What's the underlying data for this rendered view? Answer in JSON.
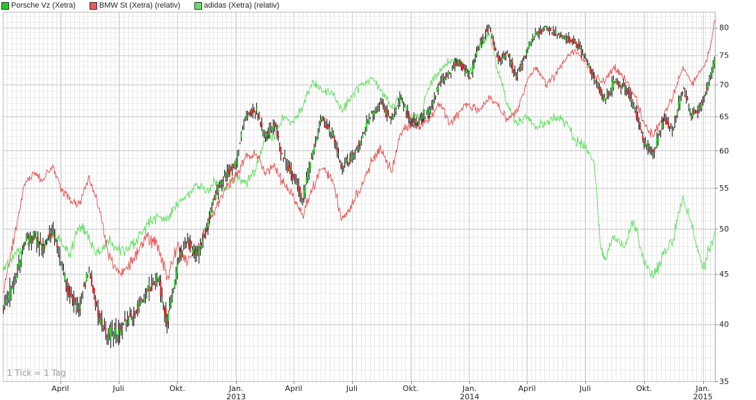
{
  "legend": [
    {
      "label": "Porsche Vz (Xetra)",
      "color": "#22cc22"
    },
    {
      "label": "BMW St (Xetra) (relativ)",
      "color": "#e55b5b"
    },
    {
      "label": "adidas (Xetra) (relativ)",
      "color": "#66e066"
    }
  ],
  "note": "1 Tick = 1 Tag",
  "chart_data": {
    "type": "line",
    "y_scale": "log",
    "ylim": [
      35,
      83
    ],
    "xlim": [
      "2012-01-02",
      "2015-01-20"
    ],
    "grid": true,
    "y_ticks": [
      35,
      40,
      45,
      50,
      55,
      60,
      65,
      70,
      75,
      80
    ],
    "x_ticks": [
      {
        "date": "2012-04-01",
        "label": "April",
        "year": ""
      },
      {
        "date": "2012-07-01",
        "label": "Juli",
        "year": ""
      },
      {
        "date": "2012-10-01",
        "label": "Okt.",
        "year": ""
      },
      {
        "date": "2013-01-01",
        "label": "Jan.",
        "year": "2013"
      },
      {
        "date": "2013-04-01",
        "label": "April",
        "year": ""
      },
      {
        "date": "2013-07-01",
        "label": "Juli",
        "year": ""
      },
      {
        "date": "2013-10-01",
        "label": "Okt.",
        "year": ""
      },
      {
        "date": "2014-01-01",
        "label": "Jan.",
        "year": "2014"
      },
      {
        "date": "2014-04-01",
        "label": "April",
        "year": ""
      },
      {
        "date": "2014-07-01",
        "label": "Juli",
        "year": ""
      },
      {
        "date": "2014-10-01",
        "label": "Okt.",
        "year": ""
      },
      {
        "date": "2015-01-01",
        "label": "Jan.",
        "year": "2015"
      }
    ],
    "series": [
      {
        "name": "Porsche Vz (Xetra)",
        "style": "candlestick",
        "color": "#000000",
        "up_color": "#22cc22",
        "down_color": "#dd2222",
        "points": [
          [
            "2012-01-02",
            41.5
          ],
          [
            "2012-01-20",
            44.0
          ],
          [
            "2012-02-05",
            48.5
          ],
          [
            "2012-02-20",
            49.0
          ],
          [
            "2012-03-05",
            48.0
          ],
          [
            "2012-03-20",
            50.0
          ],
          [
            "2012-04-01",
            46.0
          ],
          [
            "2012-04-15",
            43.0
          ],
          [
            "2012-05-01",
            41.5
          ],
          [
            "2012-05-15",
            45.5
          ],
          [
            "2012-06-01",
            40.5
          ],
          [
            "2012-06-15",
            39.0
          ],
          [
            "2012-07-01",
            39.5
          ],
          [
            "2012-07-15",
            40.5
          ],
          [
            "2012-08-01",
            41.5
          ],
          [
            "2012-08-15",
            43.5
          ],
          [
            "2012-09-01",
            44.5
          ],
          [
            "2012-09-15",
            40.0
          ],
          [
            "2012-10-01",
            46.0
          ],
          [
            "2012-10-15",
            48.5
          ],
          [
            "2012-11-01",
            47.0
          ],
          [
            "2012-11-15",
            50.0
          ],
          [
            "2012-12-01",
            54.5
          ],
          [
            "2012-12-15",
            56.5
          ],
          [
            "2013-01-01",
            58.5
          ],
          [
            "2013-01-15",
            65.0
          ],
          [
            "2013-02-01",
            66.0
          ],
          [
            "2013-02-15",
            62.0
          ],
          [
            "2013-03-01",
            64.0
          ],
          [
            "2013-03-15",
            59.0
          ],
          [
            "2013-04-01",
            56.5
          ],
          [
            "2013-04-15",
            53.5
          ],
          [
            "2013-05-01",
            60.0
          ],
          [
            "2013-05-15",
            65.0
          ],
          [
            "2013-06-01",
            62.0
          ],
          [
            "2013-06-15",
            57.5
          ],
          [
            "2013-07-01",
            59.0
          ],
          [
            "2013-07-15",
            61.5
          ],
          [
            "2013-08-01",
            65.5
          ],
          [
            "2013-08-15",
            67.0
          ],
          [
            "2013-09-01",
            64.5
          ],
          [
            "2013-09-15",
            68.0
          ],
          [
            "2013-10-01",
            64.0
          ],
          [
            "2013-10-15",
            64.5
          ],
          [
            "2013-11-01",
            66.0
          ],
          [
            "2013-11-15",
            70.5
          ],
          [
            "2013-12-01",
            72.0
          ],
          [
            "2013-12-15",
            74.0
          ],
          [
            "2014-01-01",
            71.0
          ],
          [
            "2014-01-15",
            76.5
          ],
          [
            "2014-02-01",
            80.0
          ],
          [
            "2014-02-15",
            74.0
          ],
          [
            "2014-03-01",
            75.5
          ],
          [
            "2014-03-15",
            71.0
          ],
          [
            "2014-04-01",
            76.0
          ],
          [
            "2014-04-15",
            79.0
          ],
          [
            "2014-05-01",
            80.0
          ],
          [
            "2014-05-15",
            79.0
          ],
          [
            "2014-06-01",
            78.0
          ],
          [
            "2014-06-15",
            77.5
          ],
          [
            "2014-07-01",
            74.5
          ],
          [
            "2014-07-15",
            71.0
          ],
          [
            "2014-08-01",
            67.5
          ],
          [
            "2014-08-15",
            70.5
          ],
          [
            "2014-09-01",
            69.5
          ],
          [
            "2014-09-15",
            66.5
          ],
          [
            "2014-10-01",
            61.0
          ],
          [
            "2014-10-15",
            59.5
          ],
          [
            "2014-11-01",
            64.5
          ],
          [
            "2014-11-15",
            63.0
          ],
          [
            "2014-12-01",
            69.5
          ],
          [
            "2014-12-15",
            65.0
          ],
          [
            "2015-01-01",
            67.0
          ],
          [
            "2015-01-20",
            74.5
          ]
        ]
      },
      {
        "name": "BMW St (Xetra) (relativ)",
        "style": "line",
        "color": "#e55b5b",
        "points": [
          [
            "2012-01-02",
            43.0
          ],
          [
            "2012-01-20",
            49.0
          ],
          [
            "2012-02-05",
            55.5
          ],
          [
            "2012-02-20",
            57.0
          ],
          [
            "2012-03-05",
            56.0
          ],
          [
            "2012-03-20",
            58.0
          ],
          [
            "2012-04-01",
            55.0
          ],
          [
            "2012-04-15",
            53.5
          ],
          [
            "2012-05-01",
            53.0
          ],
          [
            "2012-05-15",
            56.5
          ],
          [
            "2012-06-01",
            52.5
          ],
          [
            "2012-06-15",
            47.0
          ],
          [
            "2012-07-01",
            45.0
          ],
          [
            "2012-07-15",
            45.5
          ],
          [
            "2012-08-01",
            47.5
          ],
          [
            "2012-08-15",
            49.0
          ],
          [
            "2012-09-01",
            48.0
          ],
          [
            "2012-09-15",
            44.5
          ],
          [
            "2012-10-01",
            48.0
          ],
          [
            "2012-10-15",
            46.5
          ],
          [
            "2012-11-01",
            47.5
          ],
          [
            "2012-11-15",
            50.0
          ],
          [
            "2012-12-01",
            52.5
          ],
          [
            "2012-12-15",
            55.0
          ],
          [
            "2013-01-01",
            56.5
          ],
          [
            "2013-01-15",
            59.0
          ],
          [
            "2013-02-01",
            59.5
          ],
          [
            "2013-02-15",
            57.0
          ],
          [
            "2013-03-01",
            58.0
          ],
          [
            "2013-03-15",
            55.5
          ],
          [
            "2013-04-01",
            54.0
          ],
          [
            "2013-04-15",
            51.5
          ],
          [
            "2013-05-01",
            55.0
          ],
          [
            "2013-05-15",
            57.5
          ],
          [
            "2013-06-01",
            56.0
          ],
          [
            "2013-06-15",
            51.0
          ],
          [
            "2013-07-01",
            53.0
          ],
          [
            "2013-07-15",
            55.0
          ],
          [
            "2013-08-01",
            58.5
          ],
          [
            "2013-08-15",
            60.5
          ],
          [
            "2013-09-01",
            57.0
          ],
          [
            "2013-09-15",
            62.5
          ],
          [
            "2013-10-01",
            64.0
          ],
          [
            "2013-10-15",
            63.5
          ],
          [
            "2013-11-01",
            65.0
          ],
          [
            "2013-11-15",
            67.0
          ],
          [
            "2013-12-01",
            64.0
          ],
          [
            "2013-12-15",
            65.5
          ],
          [
            "2014-01-01",
            67.0
          ],
          [
            "2014-01-15",
            66.0
          ],
          [
            "2014-02-01",
            68.0
          ],
          [
            "2014-02-15",
            66.5
          ],
          [
            "2014-03-01",
            64.5
          ],
          [
            "2014-03-15",
            65.5
          ],
          [
            "2014-04-01",
            70.5
          ],
          [
            "2014-04-15",
            73.0
          ],
          [
            "2014-05-01",
            70.0
          ],
          [
            "2014-05-15",
            71.5
          ],
          [
            "2014-06-01",
            74.5
          ],
          [
            "2014-06-15",
            76.0
          ],
          [
            "2014-07-01",
            74.0
          ],
          [
            "2014-07-15",
            71.5
          ],
          [
            "2014-08-01",
            70.5
          ],
          [
            "2014-08-15",
            73.0
          ],
          [
            "2014-09-01",
            71.0
          ],
          [
            "2014-09-15",
            68.5
          ],
          [
            "2014-10-01",
            64.0
          ],
          [
            "2014-10-15",
            62.0
          ],
          [
            "2014-11-01",
            65.0
          ],
          [
            "2014-11-15",
            68.0
          ],
          [
            "2014-12-01",
            73.0
          ],
          [
            "2014-12-15",
            70.0
          ],
          [
            "2015-01-01",
            73.0
          ],
          [
            "2015-01-12",
            76.0
          ],
          [
            "2015-01-20",
            81.5
          ]
        ]
      },
      {
        "name": "adidas (Xetra) (relativ)",
        "style": "line",
        "color": "#66e066",
        "points": [
          [
            "2012-01-02",
            45.5
          ],
          [
            "2012-01-20",
            47.0
          ],
          [
            "2012-02-05",
            48.0
          ],
          [
            "2012-02-20",
            49.5
          ],
          [
            "2012-03-05",
            48.0
          ],
          [
            "2012-03-20",
            49.5
          ],
          [
            "2012-04-01",
            48.5
          ],
          [
            "2012-04-15",
            47.0
          ],
          [
            "2012-05-01",
            50.5
          ],
          [
            "2012-05-15",
            49.0
          ],
          [
            "2012-06-01",
            47.0
          ],
          [
            "2012-06-15",
            48.5
          ],
          [
            "2012-07-01",
            47.5
          ],
          [
            "2012-07-15",
            47.5
          ],
          [
            "2012-08-01",
            49.0
          ],
          [
            "2012-08-15",
            50.5
          ],
          [
            "2012-09-01",
            51.5
          ],
          [
            "2012-09-15",
            51.0
          ],
          [
            "2012-10-01",
            53.0
          ],
          [
            "2012-10-15",
            54.0
          ],
          [
            "2012-11-01",
            55.5
          ],
          [
            "2012-11-15",
            54.5
          ],
          [
            "2012-12-01",
            56.0
          ],
          [
            "2012-12-15",
            55.0
          ],
          [
            "2013-01-01",
            56.5
          ],
          [
            "2013-01-15",
            55.5
          ],
          [
            "2013-02-01",
            57.5
          ],
          [
            "2013-02-15",
            61.5
          ],
          [
            "2013-03-01",
            62.0
          ],
          [
            "2013-03-15",
            65.0
          ],
          [
            "2013-04-01",
            64.0
          ],
          [
            "2013-04-15",
            66.5
          ],
          [
            "2013-05-01",
            70.5
          ],
          [
            "2013-05-15",
            69.0
          ],
          [
            "2013-06-01",
            68.5
          ],
          [
            "2013-06-15",
            66.0
          ],
          [
            "2013-07-01",
            68.0
          ],
          [
            "2013-07-15",
            70.0
          ],
          [
            "2013-08-01",
            71.0
          ],
          [
            "2013-08-15",
            69.0
          ],
          [
            "2013-09-01",
            66.5
          ],
          [
            "2013-09-15",
            68.0
          ],
          [
            "2013-10-01",
            65.0
          ],
          [
            "2013-10-15",
            65.0
          ],
          [
            "2013-11-01",
            70.0
          ],
          [
            "2013-11-15",
            72.5
          ],
          [
            "2013-12-01",
            74.0
          ],
          [
            "2013-12-15",
            74.0
          ],
          [
            "2014-01-01",
            72.0
          ],
          [
            "2014-01-15",
            76.0
          ],
          [
            "2014-02-01",
            78.5
          ],
          [
            "2014-02-15",
            72.0
          ],
          [
            "2014-03-01",
            67.0
          ],
          [
            "2014-03-15",
            64.0
          ],
          [
            "2014-04-01",
            65.0
          ],
          [
            "2014-04-15",
            63.5
          ],
          [
            "2014-05-01",
            64.0
          ],
          [
            "2014-05-15",
            65.0
          ],
          [
            "2014-06-01",
            64.0
          ],
          [
            "2014-06-15",
            61.5
          ],
          [
            "2014-07-01",
            60.5
          ],
          [
            "2014-07-15",
            58.5
          ],
          [
            "2014-07-25",
            48.0
          ],
          [
            "2014-08-01",
            46.5
          ],
          [
            "2014-08-15",
            49.0
          ],
          [
            "2014-09-01",
            48.0
          ],
          [
            "2014-09-15",
            51.0
          ],
          [
            "2014-10-01",
            46.0
          ],
          [
            "2014-10-15",
            44.5
          ],
          [
            "2014-11-01",
            47.0
          ],
          [
            "2014-11-15",
            48.5
          ],
          [
            "2014-12-01",
            54.0
          ],
          [
            "2014-12-15",
            50.0
          ],
          [
            "2015-01-01",
            45.5
          ],
          [
            "2015-01-20",
            49.5
          ]
        ]
      }
    ]
  }
}
